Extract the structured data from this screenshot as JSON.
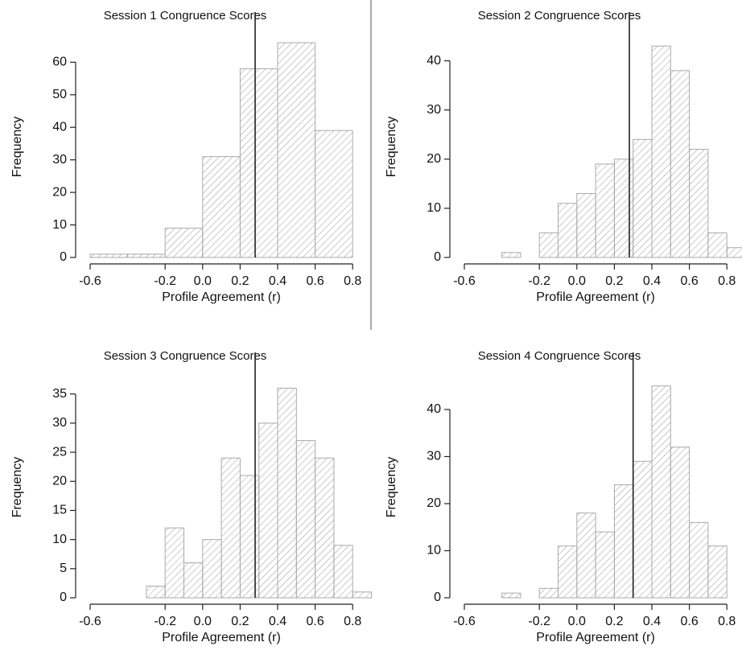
{
  "chart_data": [
    {
      "type": "histogram",
      "title": "Session 1 Congruence Scores",
      "x_label": "Profile Agreement (r)",
      "y_label": "Frequency",
      "bins": [
        -0.6,
        -0.4,
        -0.2,
        0.0,
        0.2,
        0.4,
        0.6,
        0.8
      ],
      "values": [
        1,
        1,
        9,
        31,
        58,
        66,
        39
      ],
      "reference_line": 0.28,
      "xlim": [
        -0.6,
        0.9
      ],
      "ylim": [
        0,
        68
      ],
      "xticks": [
        -0.6,
        -0.2,
        {
          "value": 0,
          "label": "0.0"
        },
        0.2,
        0.4,
        0.6,
        0.8
      ],
      "yticks": [
        0,
        10,
        20,
        30,
        40,
        50,
        60
      ]
    },
    {
      "type": "histogram",
      "title": "Session 2 Congruence Scores",
      "x_label": "Profile Agreement (r)",
      "y_label": "Frequency",
      "bins": [
        -0.4,
        -0.3,
        -0.2,
        -0.1,
        0.0,
        0.1,
        0.2,
        0.3,
        0.4,
        0.5,
        0.6,
        0.7,
        0.8,
        0.9
      ],
      "values": [
        1,
        0,
        5,
        11,
        13,
        19,
        20,
        24,
        43,
        38,
        22,
        5,
        2
      ],
      "reference_line": 0.28,
      "xlim": [
        -0.6,
        0.9
      ],
      "ylim": [
        0,
        45
      ],
      "xticks": [
        -0.6,
        -0.2,
        {
          "value": 0,
          "label": "0.0"
        },
        0.2,
        0.4,
        0.6,
        0.8
      ],
      "yticks": [
        0,
        10,
        20,
        30,
        40
      ]
    },
    {
      "type": "histogram",
      "title": "Session 3 Congruence Scores",
      "x_label": "Profile Agreement (r)",
      "y_label": "Frequency",
      "bins": [
        -0.3,
        -0.2,
        -0.1,
        0.0,
        0.1,
        0.2,
        0.3,
        0.4,
        0.5,
        0.6,
        0.7,
        0.8,
        0.9
      ],
      "values": [
        2,
        12,
        6,
        10,
        24,
        21,
        30,
        36,
        27,
        24,
        9,
        1
      ],
      "reference_line": 0.28,
      "xlim": [
        -0.6,
        0.9
      ],
      "ylim": [
        0,
        38
      ],
      "xticks": [
        -0.6,
        -0.2,
        {
          "value": 0,
          "label": "0.0"
        },
        0.2,
        0.4,
        0.6,
        0.8
      ],
      "yticks": [
        0,
        5,
        10,
        15,
        20,
        25,
        30,
        35
      ]
    },
    {
      "type": "histogram",
      "title": "Session 4 Congruence Scores",
      "x_label": "Profile Agreement (r)",
      "y_label": "Frequency",
      "bins": [
        -0.4,
        -0.3,
        -0.2,
        -0.1,
        0.0,
        0.1,
        0.2,
        0.3,
        0.4,
        0.5,
        0.6,
        0.7,
        0.8
      ],
      "values": [
        1,
        0,
        2,
        11,
        18,
        14,
        24,
        29,
        45,
        32,
        16,
        11
      ],
      "reference_line": 0.3,
      "xlim": [
        -0.6,
        0.9
      ],
      "ylim": [
        0,
        47
      ],
      "xticks": [
        -0.6,
        -0.2,
        {
          "value": 0,
          "label": "0.0"
        },
        0.2,
        0.4,
        0.6,
        0.8
      ],
      "yticks": [
        0,
        10,
        20,
        30,
        40
      ]
    }
  ]
}
